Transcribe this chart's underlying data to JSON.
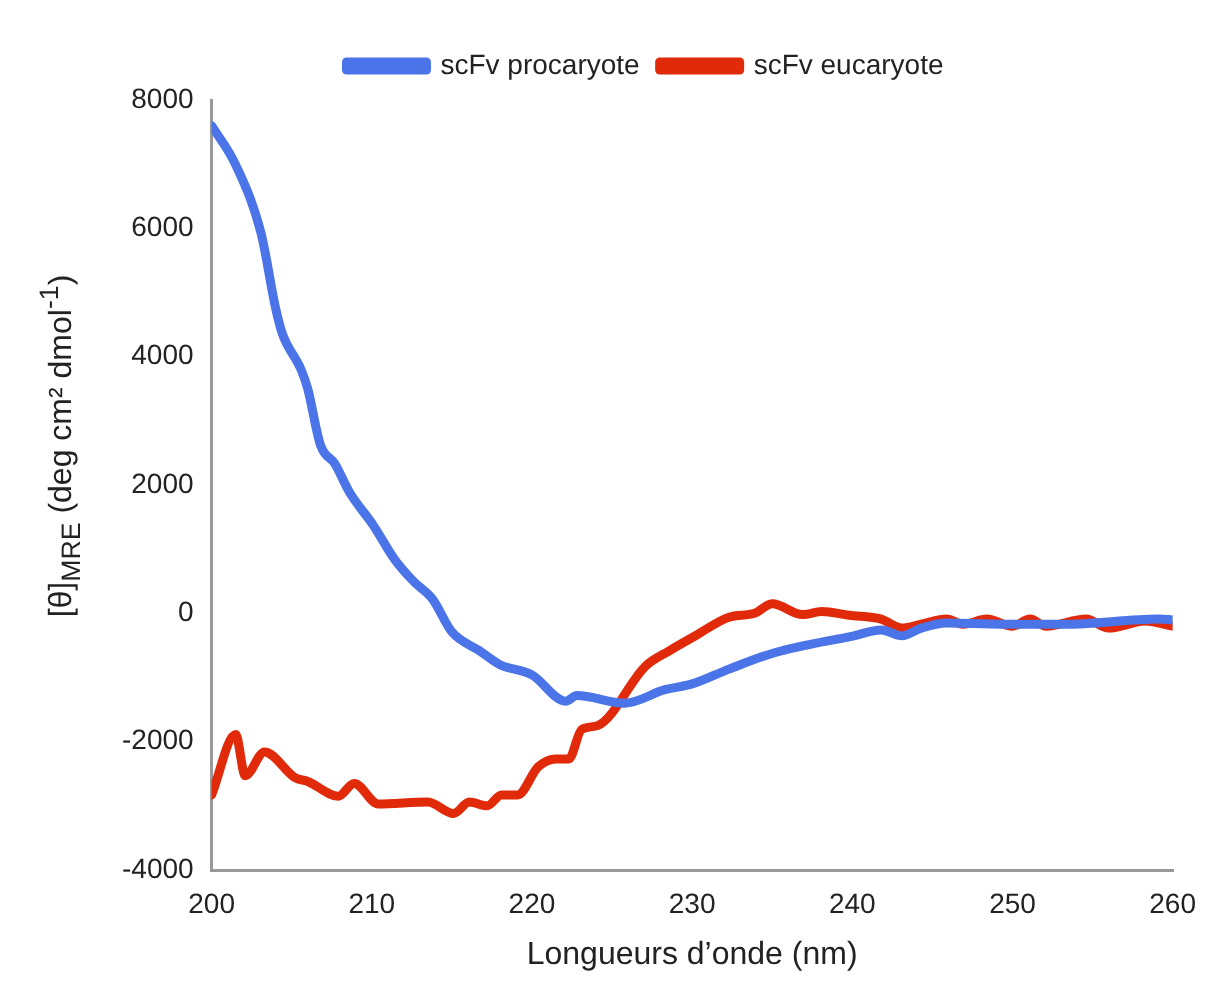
{
  "chart_data": {
    "type": "line",
    "xlabel": "Longueurs d’onde (nm)",
    "ylabel": "[θ]$_{MRE}$ (deg cm² dmol$^{-1}$)",
    "xlim": [
      200,
      260
    ],
    "xticks": [
      200,
      210,
      220,
      230,
      240,
      250,
      260
    ],
    "ylim": [
      -4000,
      8000
    ],
    "yticks": [
      -4000,
      -2000,
      0,
      2000,
      4000,
      6000,
      8000
    ],
    "grid": false,
    "legend": "top",
    "marker": "none",
    "line_style": "solid",
    "series": [
      {
        "name": "scFv procaryote",
        "color": "#4a74e8",
        "x": [
          200,
          201.5,
          203.1,
          204,
          204.4,
          205.6,
          206,
          206.8,
          207.7,
          208.6,
          210.1,
          211.4,
          212.6,
          213.8,
          215,
          216.7,
          218,
          220,
          222.1,
          222.8,
          225.8,
          228.3,
          230,
          232.3,
          235.2,
          240.1,
          241.8,
          243.1,
          244.3,
          245.9,
          249.3,
          253.3,
          259.1,
          260
        ],
        "values": [
          7600,
          6990,
          5910,
          4750,
          4370,
          3790,
          3500,
          2620,
          2330,
          1890,
          1370,
          850,
          500,
          220,
          -290,
          -580,
          -800,
          -960,
          -1370,
          -1280,
          -1400,
          -1190,
          -1100,
          -870,
          -610,
          -350,
          -260,
          -350,
          -230,
          -150,
          -170,
          -170,
          -90,
          -100
        ]
      },
      {
        "name": "scFv eucaryote",
        "color": "#e02a0a",
        "x": [
          200,
          201.5,
          202.1,
          203.3,
          205.2,
          206,
          207.9,
          208.9,
          210.4,
          213.5,
          215.1,
          216.1,
          217.2,
          218.1,
          219.1,
          220.4,
          221.5,
          222.3,
          223.1,
          224.1,
          227.1,
          228.6,
          230.2,
          232.3,
          233.9,
          235,
          236.9,
          238.1,
          239.8,
          241.8,
          243.1,
          244.3,
          245.9,
          246.9,
          248.4,
          250,
          251.1,
          252.1,
          254.6,
          256,
          258.3,
          260
        ],
        "values": [
          -2830,
          -1890,
          -2530,
          -2160,
          -2560,
          -2620,
          -2850,
          -2650,
          -2970,
          -2940,
          -3120,
          -2940,
          -3000,
          -2830,
          -2830,
          -2390,
          -2270,
          -2270,
          -1810,
          -1750,
          -820,
          -580,
          -350,
          -60,
          0,
          150,
          -20,
          30,
          -30,
          -90,
          -230,
          -170,
          -90,
          -170,
          -90,
          -200,
          -90,
          -200,
          -90,
          -230,
          -120,
          -200
        ]
      }
    ]
  }
}
